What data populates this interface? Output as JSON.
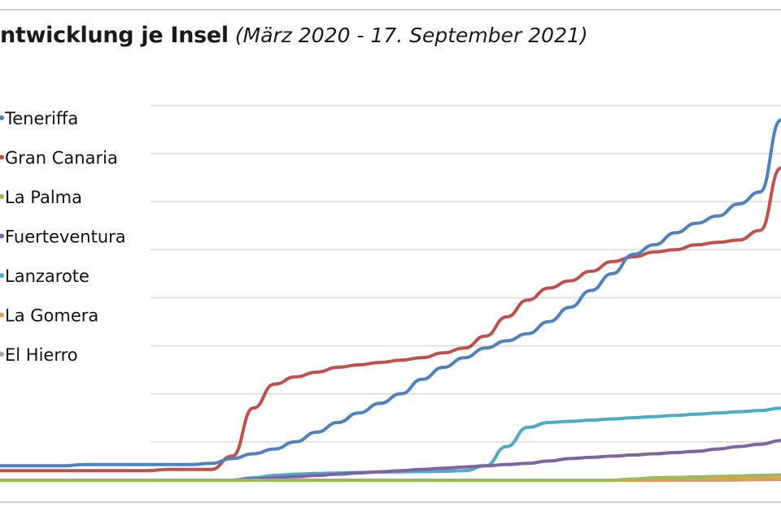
{
  "chart_data": {
    "type": "line",
    "title": "ntwicklung je Insel",
    "subtitle": "(März 2020 - 17. September 2021)",
    "xlabel": "",
    "ylabel": "",
    "x_range": [
      "2020-03",
      "2021-09-17"
    ],
    "grid": true,
    "legend_position": "left",
    "series": [
      {
        "name": "Teneriffa",
        "color": "#4f81bd",
        "values": [
          0.06,
          0.06,
          0.06,
          0.06,
          0.065,
          0.065,
          0.065,
          0.065,
          0.065,
          0.065,
          0.07,
          0.09,
          0.11,
          0.13,
          0.16,
          0.2,
          0.24,
          0.28,
          0.32,
          0.36,
          0.42,
          0.47,
          0.51,
          0.55,
          0.58,
          0.61,
          0.66,
          0.72,
          0.79,
          0.86,
          0.94,
          0.98,
          1.03,
          1.07,
          1.1,
          1.15,
          1.2,
          1.5
        ]
      },
      {
        "name": "Gran Canaria",
        "color": "#c0504d",
        "values": [
          0.04,
          0.04,
          0.04,
          0.04,
          0.04,
          0.04,
          0.04,
          0.04,
          0.045,
          0.045,
          0.045,
          0.1,
          0.3,
          0.4,
          0.43,
          0.45,
          0.47,
          0.48,
          0.49,
          0.5,
          0.51,
          0.53,
          0.55,
          0.6,
          0.68,
          0.75,
          0.8,
          0.83,
          0.87,
          0.91,
          0.93,
          0.95,
          0.96,
          0.98,
          0.99,
          1.0,
          1.04,
          1.3
        ]
      },
      {
        "name": "La Palma",
        "color": "#9bbb59",
        "values": [
          0,
          0,
          0,
          0,
          0,
          0,
          0,
          0,
          0,
          0,
          0,
          0,
          0,
          0,
          0,
          0,
          0,
          0,
          0,
          0,
          0,
          0,
          0,
          0,
          0,
          0,
          0,
          0,
          0,
          0,
          0.005,
          0.01,
          0.012,
          0.014,
          0.016,
          0.018,
          0.02,
          0.022
        ]
      },
      {
        "name": "Fuerteventura",
        "color": "#8064a2",
        "values": [
          0,
          0,
          0,
          0,
          0,
          0,
          0,
          0,
          0,
          0,
          0,
          0,
          0.005,
          0.01,
          0.015,
          0.02,
          0.025,
          0.03,
          0.035,
          0.04,
          0.045,
          0.05,
          0.055,
          0.06,
          0.065,
          0.07,
          0.08,
          0.09,
          0.095,
          0.1,
          0.105,
          0.11,
          0.115,
          0.12,
          0.13,
          0.14,
          0.15,
          0.165
        ]
      },
      {
        "name": "Lanzarote",
        "color": "#4bacc6",
        "values": [
          0,
          0,
          0,
          0,
          0,
          0,
          0,
          0,
          0,
          0,
          0,
          0,
          0.01,
          0.02,
          0.025,
          0.028,
          0.03,
          0.032,
          0.034,
          0.035,
          0.036,
          0.037,
          0.04,
          0.06,
          0.14,
          0.22,
          0.24,
          0.245,
          0.25,
          0.255,
          0.26,
          0.265,
          0.27,
          0.275,
          0.28,
          0.285,
          0.29,
          0.3
        ]
      },
      {
        "name": "La Gomera",
        "color": "#f79646",
        "values": [
          0,
          0,
          0,
          0,
          0,
          0,
          0,
          0,
          0,
          0,
          0,
          0,
          0,
          0,
          0,
          0,
          0,
          0,
          0,
          0,
          0,
          0,
          0,
          0,
          0,
          0,
          0,
          0,
          0,
          0,
          0,
          0.002,
          0.003,
          0.004,
          0.005,
          0.006,
          0.007,
          0.008
        ]
      },
      {
        "name": "El Hierro",
        "color": "#a6a6a6",
        "values": [
          0,
          0,
          0,
          0,
          0,
          0,
          0,
          0,
          0,
          0,
          0,
          0,
          0,
          0,
          0,
          0,
          0,
          0,
          0,
          0,
          0,
          0,
          0,
          0,
          0,
          0,
          0,
          0,
          0,
          0,
          0,
          0,
          0,
          0,
          0,
          0.001,
          0.002,
          0.003
        ]
      }
    ]
  }
}
